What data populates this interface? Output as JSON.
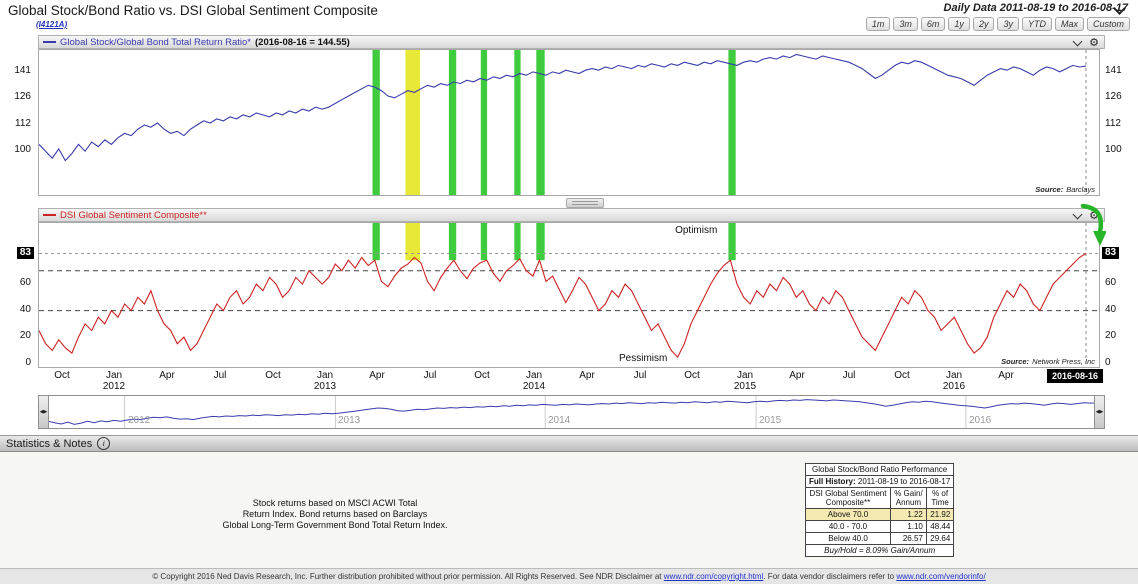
{
  "header": {
    "title": "Global Stock/Bond Ratio vs. DSI Global Sentiment Composite",
    "chart_id": "(I4121A)",
    "date_range_label": "Daily Data 2011-08-19 to 2016-08-17",
    "range_buttons": [
      "1m",
      "3m",
      "6m",
      "1y",
      "2y",
      "3y",
      "YTD",
      "Max",
      "Custom"
    ]
  },
  "icons": {
    "gear_glyph": "⚙"
  },
  "panels": {
    "ratio_legend": "Global Stock/Global Bond Total Return Ratio*",
    "ratio_value_label": "(2016-08-16 = 144.55)",
    "ratio_source_prefix": "Source:",
    "ratio_source": "Barclays",
    "sentiment_legend": "DSI Global Sentiment Composite**",
    "sentiment_source_prefix": "Source:",
    "sentiment_source": "Network Press, Inc",
    "optimism_label": "Optimism",
    "pessimism_label": "Pessimism",
    "current_date_label": "2016-08-16"
  },
  "stats_bar": {
    "label": "Statistics & Notes"
  },
  "notes": {
    "lines": [
      "Stock returns based on MSCI ACWI Total",
      "Return Index. Bond returns based on Barclays",
      "Global Long-Term Government Bond Total Return Index."
    ]
  },
  "table": {
    "title": "Global Stock/Bond Ratio Performance",
    "history_label": "Full History:",
    "history_value": "2011-08-19 to 2016-08-17",
    "col1_header": "DSI Global Sentiment\nComposite**",
    "col2_header": "% Gain/\nAnnum",
    "col3_header": "% of\nTime",
    "rows": [
      {
        "range": "Above 70.0",
        "gain": "1.22",
        "time": "21.92",
        "highlight": true
      },
      {
        "range": "40.0 - 70.0",
        "gain": "1.10",
        "time": "48.44",
        "highlight": false
      },
      {
        "range": "Below 40.0",
        "gain": "26.57",
        "time": "29.64",
        "highlight": false
      }
    ],
    "footer": "Buy/Hold = 8.09% Gain/Annum"
  },
  "footer": {
    "pre": "© Copyright 2016 Ned Davis Research, Inc. Further distribution prohibited without prior permission. All Rights Reserved. See NDR Disclaimer at ",
    "link1": "www.ndr.com/copyright.html",
    "mid": ". For data vendor disclaimers refer to ",
    "link2": "www.ndr.com/vendorinfo/",
    "post": ""
  },
  "chart_data": {
    "type": "line",
    "x_range": [
      "2011-08-19",
      "2016-08-17"
    ],
    "charts": [
      {
        "name": "Global Stock/Global Bond Total Return Ratio*",
        "color": "#3a3aad",
        "scale": "log",
        "ylim": [
          82,
          155
        ],
        "y_ticks": [
          100,
          112,
          126,
          141
        ],
        "last_value": 144.55,
        "source": "Barclays",
        "values": [
          103,
          100,
          97,
          101,
          96,
          99,
          103,
          100,
          104,
          102,
          105,
          103,
          106,
          108,
          107,
          110,
          112,
          111,
          113,
          110,
          108,
          109,
          107,
          110,
          112,
          114,
          113,
          115,
          114,
          116,
          115,
          117,
          116,
          118,
          117,
          116,
          118,
          117,
          119,
          118,
          120,
          119,
          121,
          120,
          121,
          123,
          125,
          127,
          129,
          131,
          133,
          132,
          130,
          127,
          126,
          128,
          130,
          129,
          131,
          133,
          132,
          134,
          133,
          135,
          134,
          136,
          135,
          137,
          136,
          138,
          137,
          139,
          138,
          140,
          139,
          141,
          140,
          139,
          141,
          140,
          142,
          141,
          140,
          142,
          143,
          142,
          144,
          143,
          145,
          144,
          143,
          145,
          144,
          146,
          145,
          144,
          146,
          145,
          147,
          146,
          145,
          147,
          146,
          148,
          147,
          146,
          145,
          147,
          148,
          147,
          149,
          150,
          149,
          151,
          150,
          152,
          151,
          150,
          149,
          151,
          150,
          149,
          148,
          147,
          145,
          143,
          140,
          137,
          139,
          142,
          145,
          147,
          146,
          148,
          147,
          145,
          143,
          141,
          139,
          138,
          137,
          135,
          133,
          136,
          139,
          141,
          143,
          142,
          144,
          143,
          141,
          139,
          142,
          144,
          143,
          141,
          143,
          145,
          144,
          144.55
        ]
      },
      {
        "name": "DSI Global Sentiment Composite**",
        "color": "#cc2222",
        "scale": "linear",
        "ylim": [
          -4,
          106
        ],
        "y_ticks": [
          0,
          20,
          40,
          60,
          83
        ],
        "boxed_tick": 83,
        "threshold_lines": [
          40,
          70
        ],
        "current_value_line": 83,
        "bands_end_value": 78,
        "last_value": 83,
        "source": "Network Press, Inc",
        "values": [
          25,
          15,
          10,
          18,
          12,
          8,
          20,
          30,
          25,
          35,
          30,
          40,
          35,
          45,
          40,
          50,
          45,
          55,
          40,
          30,
          25,
          15,
          20,
          10,
          15,
          25,
          35,
          45,
          40,
          50,
          55,
          45,
          50,
          60,
          55,
          65,
          60,
          50,
          55,
          65,
          60,
          70,
          65,
          60,
          65,
          75,
          70,
          78,
          72,
          80,
          74,
          78,
          62,
          58,
          66,
          72,
          75,
          80,
          76,
          62,
          55,
          65,
          72,
          78,
          70,
          64,
          72,
          76,
          78,
          68,
          62,
          70,
          74,
          79,
          70,
          66,
          78,
          62,
          66,
          56,
          46,
          55,
          65,
          60,
          50,
          40,
          45,
          55,
          50,
          60,
          55,
          45,
          35,
          25,
          30,
          20,
          10,
          5,
          15,
          30,
          40,
          50,
          60,
          68,
          74,
          78,
          60,
          50,
          45,
          55,
          50,
          60,
          55,
          65,
          60,
          50,
          55,
          45,
          40,
          50,
          45,
          55,
          50,
          40,
          30,
          20,
          15,
          10,
          20,
          30,
          40,
          50,
          45,
          55,
          50,
          40,
          35,
          25,
          30,
          35,
          25,
          15,
          8,
          12,
          20,
          35,
          45,
          55,
          50,
          60,
          55,
          45,
          40,
          50,
          60,
          65,
          70,
          75,
          80,
          83
        ]
      }
    ],
    "highlight_bands": [
      {
        "pos": 0.322,
        "width": 0.007,
        "color": "#3ecc3e"
      },
      {
        "pos": 0.357,
        "width": 0.014,
        "color": "#e8e838"
      },
      {
        "pos": 0.395,
        "width": 0.007,
        "color": "#3ecc3e"
      },
      {
        "pos": 0.425,
        "width": 0.006,
        "color": "#3ecc3e"
      },
      {
        "pos": 0.457,
        "width": 0.006,
        "color": "#3ecc3e"
      },
      {
        "pos": 0.479,
        "width": 0.008,
        "color": "#3ecc3e"
      },
      {
        "pos": 0.662,
        "width": 0.007,
        "color": "#3ecc3e"
      }
    ],
    "x_ticks": [
      {
        "pos": 0.023,
        "m": "Oct"
      },
      {
        "pos": 0.073,
        "m": "Jan",
        "y": "2012"
      },
      {
        "pos": 0.123,
        "m": "Apr"
      },
      {
        "pos": 0.174,
        "m": "Jul"
      },
      {
        "pos": 0.224,
        "m": "Oct"
      },
      {
        "pos": 0.274,
        "m": "Jan",
        "y": "2013"
      },
      {
        "pos": 0.324,
        "m": "Apr"
      },
      {
        "pos": 0.374,
        "m": "Jul"
      },
      {
        "pos": 0.424,
        "m": "Oct"
      },
      {
        "pos": 0.474,
        "m": "Jan",
        "y": "2014"
      },
      {
        "pos": 0.524,
        "m": "Apr"
      },
      {
        "pos": 0.575,
        "m": "Jul"
      },
      {
        "pos": 0.625,
        "m": "Oct"
      },
      {
        "pos": 0.675,
        "m": "Jan",
        "y": "2015"
      },
      {
        "pos": 0.725,
        "m": "Apr"
      },
      {
        "pos": 0.775,
        "m": "Jul"
      },
      {
        "pos": 0.825,
        "m": "Oct"
      },
      {
        "pos": 0.875,
        "m": "Jan",
        "y": "2016"
      },
      {
        "pos": 0.925,
        "m": "Apr"
      }
    ],
    "navigator": {
      "ylim": [
        88,
        160
      ],
      "year_ticks": [
        {
          "pos": 0.073,
          "label": "2012"
        },
        {
          "pos": 0.274,
          "label": "2013"
        },
        {
          "pos": 0.474,
          "label": "2014"
        },
        {
          "pos": 0.675,
          "label": "2015"
        },
        {
          "pos": 0.875,
          "label": "2016"
        }
      ]
    }
  }
}
